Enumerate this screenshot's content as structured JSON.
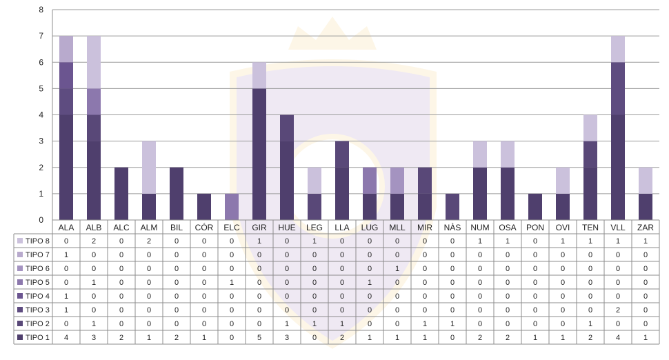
{
  "chart_data": {
    "type": "bar",
    "stacked": true,
    "categories": [
      "ALA",
      "ALB",
      "ALC",
      "ALM",
      "BIL",
      "CÓR",
      "ELC",
      "GIR",
      "HUE",
      "LEG",
      "LLA",
      "LUG",
      "MLL",
      "MIR",
      "NÀS",
      "NUM",
      "OSA",
      "PON",
      "OVI",
      "TEN",
      "VLL",
      "ZAR"
    ],
    "ylim": [
      0,
      8
    ],
    "yticks": [
      "0",
      "1",
      "2",
      "3",
      "4",
      "5",
      "6",
      "7",
      "8"
    ],
    "grid": true,
    "legend": "data-table-left",
    "series": [
      {
        "name": "TIPO 1",
        "color": "#4f3f6d",
        "values": [
          4,
          3,
          2,
          1,
          2,
          1,
          0,
          5,
          3,
          0,
          2,
          1,
          1,
          1,
          0,
          2,
          2,
          1,
          1,
          2,
          4,
          1
        ]
      },
      {
        "name": "TIPO 2",
        "color": "#594878",
        "values": [
          0,
          1,
          0,
          0,
          0,
          0,
          0,
          0,
          1,
          1,
          1,
          0,
          0,
          1,
          1,
          0,
          0,
          0,
          0,
          1,
          0,
          0
        ]
      },
      {
        "name": "TIPO 3",
        "color": "#5e4c80",
        "values": [
          1,
          0,
          0,
          0,
          0,
          0,
          0,
          0,
          0,
          0,
          0,
          0,
          0,
          0,
          0,
          0,
          0,
          0,
          0,
          0,
          2,
          0
        ]
      },
      {
        "name": "TIPO 4",
        "color": "#6b5590",
        "values": [
          1,
          0,
          0,
          0,
          0,
          0,
          0,
          0,
          0,
          0,
          0,
          0,
          0,
          0,
          0,
          0,
          0,
          0,
          0,
          0,
          0,
          0
        ]
      },
      {
        "name": "TIPO 5",
        "color": "#8c78ad",
        "values": [
          0,
          1,
          0,
          0,
          0,
          0,
          1,
          0,
          0,
          0,
          0,
          1,
          0,
          0,
          0,
          0,
          0,
          0,
          0,
          0,
          0,
          0
        ]
      },
      {
        "name": "TIPO 6",
        "color": "#a493c0",
        "values": [
          0,
          0,
          0,
          0,
          0,
          0,
          0,
          0,
          0,
          0,
          0,
          0,
          1,
          0,
          0,
          0,
          0,
          0,
          0,
          0,
          0,
          0
        ]
      },
      {
        "name": "TIPO 7",
        "color": "#b8aacd",
        "values": [
          1,
          0,
          0,
          0,
          0,
          0,
          0,
          0,
          0,
          0,
          0,
          0,
          0,
          0,
          0,
          0,
          0,
          0,
          0,
          0,
          0,
          0
        ]
      },
      {
        "name": "TIPO 8",
        "color": "#cbc1dc",
        "values": [
          0,
          2,
          0,
          2,
          0,
          0,
          0,
          1,
          0,
          1,
          0,
          0,
          0,
          0,
          0,
          1,
          1,
          0,
          1,
          1,
          1,
          1
        ]
      }
    ]
  }
}
